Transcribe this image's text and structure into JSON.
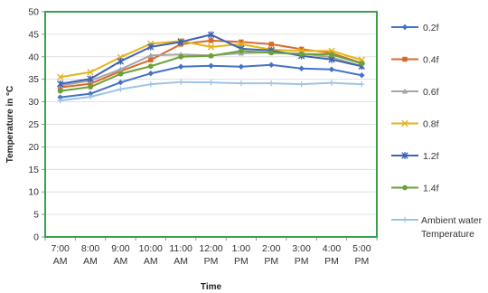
{
  "chart_data": {
    "type": "line",
    "title": "",
    "xlabel": "Time",
    "ylabel": "Temperature in °C",
    "ylim": [
      0,
      50
    ],
    "yticks": [
      0,
      5,
      10,
      15,
      20,
      25,
      30,
      35,
      40,
      45,
      50
    ],
    "grid": true,
    "legend_position": "right",
    "categories": [
      [
        "7:00",
        "AM"
      ],
      [
        "8:00",
        "AM"
      ],
      [
        "9:00",
        "AM"
      ],
      [
        "10:00",
        "AM"
      ],
      [
        "11:00",
        "AM"
      ],
      [
        "12:00",
        "PM"
      ],
      [
        "1:00",
        "PM"
      ],
      [
        "2:00",
        "PM"
      ],
      [
        "3:00",
        "PM"
      ],
      [
        "4:00",
        "PM"
      ],
      [
        "5:00",
        "PM"
      ]
    ],
    "series": [
      {
        "name": "0.2f",
        "color": "#4472c4",
        "marker": "diamond",
        "values": [
          31.0,
          31.8,
          34.3,
          36.3,
          37.8,
          38.0,
          37.8,
          38.2,
          37.4,
          37.2,
          35.9
        ]
      },
      {
        "name": "0.4f",
        "color": "#d9692b",
        "marker": "square",
        "values": [
          33.2,
          34.0,
          36.8,
          39.3,
          42.8,
          43.6,
          43.3,
          42.8,
          41.7,
          40.8,
          38.6
        ]
      },
      {
        "name": "0.6f",
        "color": "#a5a5a5",
        "marker": "triangle",
        "values": [
          33.6,
          34.7,
          37.2,
          40.3,
          40.5,
          40.3,
          40.8,
          41.0,
          40.7,
          39.9,
          37.9
        ]
      },
      {
        "name": "0.8f",
        "color": "#e5b31a",
        "marker": "x",
        "values": [
          35.5,
          36.6,
          39.9,
          42.9,
          43.5,
          42.2,
          42.8,
          41.6,
          41.3,
          41.3,
          39.3
        ]
      },
      {
        "name": "1.2f",
        "color": "#3f63b3",
        "marker": "star",
        "values": [
          34.0,
          35.1,
          39.0,
          42.2,
          43.3,
          44.9,
          41.8,
          41.4,
          40.2,
          39.4,
          37.9
        ]
      },
      {
        "name": "1.4f",
        "color": "#6aa334",
        "marker": "circle",
        "values": [
          32.4,
          33.3,
          36.2,
          37.9,
          40.0,
          40.2,
          41.3,
          40.9,
          40.6,
          40.5,
          38.5
        ]
      },
      {
        "name": "Ambient water Temperature",
        "legend_lines": [
          "Ambient water",
          "Temperature"
        ],
        "color": "#9dc3e6",
        "marker": "plus",
        "values": [
          30.3,
          31.1,
          32.8,
          33.9,
          34.4,
          34.3,
          34.1,
          34.1,
          33.9,
          34.2,
          33.9
        ]
      }
    ]
  }
}
